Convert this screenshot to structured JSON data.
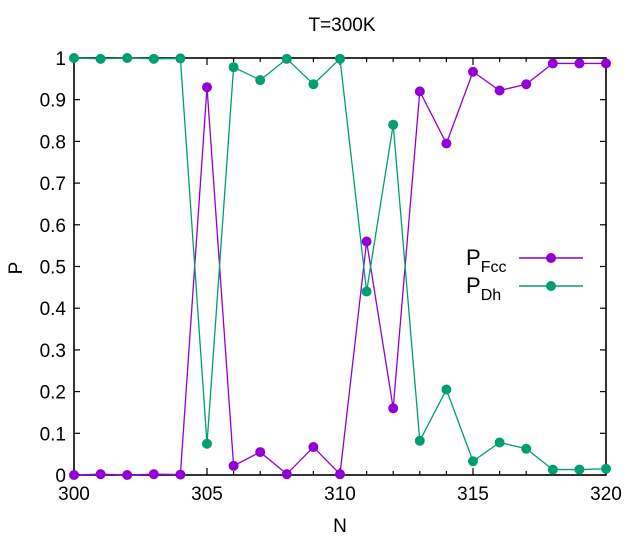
{
  "chart_data": {
    "type": "line",
    "title": "T=300K",
    "xlabel": "N",
    "ylabel": "P",
    "xlim": [
      300,
      320
    ],
    "ylim": [
      0,
      1
    ],
    "x_ticks": [
      "300",
      "305",
      "310",
      "315",
      "320"
    ],
    "y_ticks": [
      "0",
      "0.1",
      "0.2",
      "0.3",
      "0.4",
      "0.5",
      "0.6",
      "0.7",
      "0.8",
      "0.9",
      "1"
    ],
    "grid": false,
    "legend_position": "right",
    "x": [
      300,
      301,
      302,
      303,
      304,
      305,
      306,
      307,
      308,
      309,
      310,
      311,
      312,
      313,
      314,
      315,
      316,
      317,
      318,
      319,
      320
    ],
    "series": [
      {
        "name": "Fcc",
        "name_main": "P",
        "name_sub": "Fcc",
        "color": "#9400d3",
        "values": [
          0,
          0.002,
          0,
          0.002,
          0.001,
          0.93,
          0.022,
          0.055,
          0.002,
          0.067,
          0.002,
          0.56,
          0.16,
          0.92,
          0.795,
          0.967,
          0.922,
          0.937,
          0.987,
          0.987,
          0.987
        ]
      },
      {
        "name": "Dh",
        "name_main": "P",
        "name_sub": "Dh",
        "color": "#009e73",
        "values": [
          1,
          0.998,
          1,
          0.998,
          0.999,
          0.075,
          0.978,
          0.947,
          0.998,
          0.937,
          0.998,
          0.44,
          0.84,
          0.082,
          0.205,
          0.033,
          0.078,
          0.063,
          0.013,
          0.013,
          0.015
        ]
      }
    ]
  }
}
